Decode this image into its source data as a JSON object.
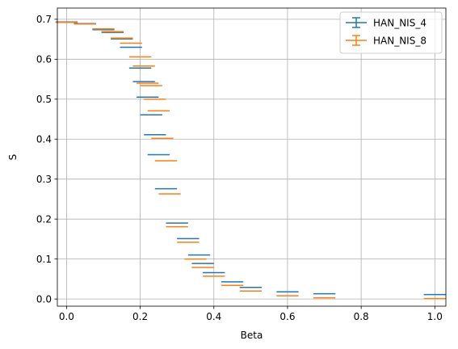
{
  "chart_data": {
    "type": "scatter",
    "title": "",
    "xlabel": "Beta",
    "ylabel": "S",
    "xlim": [
      -0.025,
      1.03
    ],
    "ylim": [
      -0.018,
      0.728
    ],
    "xticks": [
      0.0,
      0.2,
      0.4,
      0.6,
      0.8,
      1.0
    ],
    "xtick_labels": [
      "0.0",
      "0.2",
      "0.4",
      "0.6",
      "0.8",
      "1.0"
    ],
    "yticks": [
      0.0,
      0.1,
      0.2,
      0.3,
      0.4,
      0.5,
      0.6,
      0.7
    ],
    "ytick_labels": [
      "0.0",
      "0.1",
      "0.2",
      "0.3",
      "0.4",
      "0.5",
      "0.6",
      "0.7"
    ],
    "grid": true,
    "legend_position": "top-right",
    "series": [
      {
        "name": "HAN_NIS_4",
        "color": "#1f77b4",
        "marker": "horizontal error bar",
        "points": [
          {
            "x": 0.0,
            "y": 0.693,
            "xerr": 0.03
          },
          {
            "x": 0.05,
            "y": 0.689,
            "xerr": 0.03
          },
          {
            "x": 0.1,
            "y": 0.674,
            "xerr": 0.03
          },
          {
            "x": 0.125,
            "y": 0.667,
            "xerr": 0.03
          },
          {
            "x": 0.15,
            "y": 0.651,
            "xerr": 0.03
          },
          {
            "x": 0.175,
            "y": 0.63,
            "xerr": 0.03
          },
          {
            "x": 0.2,
            "y": 0.578,
            "xerr": 0.03
          },
          {
            "x": 0.21,
            "y": 0.544,
            "xerr": 0.03
          },
          {
            "x": 0.22,
            "y": 0.505,
            "xerr": 0.03
          },
          {
            "x": 0.23,
            "y": 0.461,
            "xerr": 0.03
          },
          {
            "x": 0.24,
            "y": 0.411,
            "xerr": 0.03
          },
          {
            "x": 0.25,
            "y": 0.361,
            "xerr": 0.03
          },
          {
            "x": 0.27,
            "y": 0.276,
            "xerr": 0.03
          },
          {
            "x": 0.3,
            "y": 0.19,
            "xerr": 0.03
          },
          {
            "x": 0.33,
            "y": 0.151,
            "xerr": 0.03
          },
          {
            "x": 0.36,
            "y": 0.11,
            "xerr": 0.03
          },
          {
            "x": 0.37,
            "y": 0.089,
            "xerr": 0.03
          },
          {
            "x": 0.4,
            "y": 0.066,
            "xerr": 0.03
          },
          {
            "x": 0.45,
            "y": 0.043,
            "xerr": 0.03
          },
          {
            "x": 0.5,
            "y": 0.029,
            "xerr": 0.03
          },
          {
            "x": 0.6,
            "y": 0.018,
            "xerr": 0.03
          },
          {
            "x": 0.7,
            "y": 0.013,
            "xerr": 0.03
          },
          {
            "x": 1.0,
            "y": 0.011,
            "xerr": 0.03
          }
        ]
      },
      {
        "name": "HAN_NIS_8",
        "color": "#ff7f0e",
        "marker": "horizontal error bar",
        "points": [
          {
            "x": 0.0,
            "y": 0.692,
            "xerr": 0.03
          },
          {
            "x": 0.05,
            "y": 0.688,
            "xerr": 0.03
          },
          {
            "x": 0.1,
            "y": 0.676,
            "xerr": 0.03
          },
          {
            "x": 0.125,
            "y": 0.669,
            "xerr": 0.03
          },
          {
            "x": 0.15,
            "y": 0.653,
            "xerr": 0.03
          },
          {
            "x": 0.175,
            "y": 0.64,
            "xerr": 0.03
          },
          {
            "x": 0.2,
            "y": 0.606,
            "xerr": 0.03
          },
          {
            "x": 0.21,
            "y": 0.583,
            "xerr": 0.03
          },
          {
            "x": 0.22,
            "y": 0.54,
            "xerr": 0.03
          },
          {
            "x": 0.23,
            "y": 0.534,
            "xerr": 0.03
          },
          {
            "x": 0.24,
            "y": 0.5,
            "xerr": 0.03
          },
          {
            "x": 0.25,
            "y": 0.471,
            "xerr": 0.03
          },
          {
            "x": 0.26,
            "y": 0.402,
            "xerr": 0.03
          },
          {
            "x": 0.27,
            "y": 0.346,
            "xerr": 0.03
          },
          {
            "x": 0.28,
            "y": 0.263,
            "xerr": 0.03
          },
          {
            "x": 0.3,
            "y": 0.181,
            "xerr": 0.03
          },
          {
            "x": 0.33,
            "y": 0.142,
            "xerr": 0.03
          },
          {
            "x": 0.35,
            "y": 0.1,
            "xerr": 0.03
          },
          {
            "x": 0.37,
            "y": 0.079,
            "xerr": 0.03
          },
          {
            "x": 0.4,
            "y": 0.057,
            "xerr": 0.03
          },
          {
            "x": 0.45,
            "y": 0.034,
            "xerr": 0.03
          },
          {
            "x": 0.5,
            "y": 0.02,
            "xerr": 0.03
          },
          {
            "x": 0.6,
            "y": 0.008,
            "xerr": 0.03
          },
          {
            "x": 0.7,
            "y": 0.003,
            "xerr": 0.03
          },
          {
            "x": 1.0,
            "y": 0.001,
            "xerr": 0.03
          }
        ]
      }
    ]
  }
}
